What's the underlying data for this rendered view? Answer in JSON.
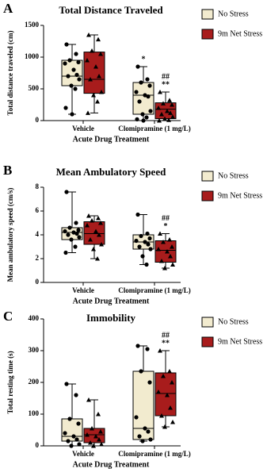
{
  "chart_data": [
    {
      "panel": "A",
      "type": "box",
      "title": "Total Distance Traveled",
      "y_label": "Total distance traveled (cm)",
      "x_label": "Acute Drug Treatment",
      "categories": [
        "Vehicle",
        "Clomipramine (1 mg/L)"
      ],
      "ylim": [
        0,
        1500
      ],
      "yticks": [
        0,
        500,
        1000,
        1500
      ],
      "series": [
        {
          "name": "No Stress",
          "color": "#f2ebcf",
          "marker": "circle",
          "boxes": [
            {
              "min": 100,
              "q1": 550,
              "median": 700,
              "q3": 950,
              "max": 1200,
              "points": [
                1200,
                1050,
                950,
                920,
                900,
                800,
                720,
                700,
                650,
                550,
                500,
                200,
                100
              ]
            },
            {
              "min": 0,
              "q1": 100,
              "median": 400,
              "q3": 600,
              "max": 850,
              "points": [
                850,
                650,
                600,
                550,
                450,
                400,
                380,
                300,
                150,
                100,
                50,
                20,
                0
              ],
              "marks": [
                "*"
              ]
            }
          ]
        },
        {
          "name": "9m Net Stress",
          "color": "#a81c1c",
          "marker": "triangle",
          "boxes": [
            {
              "min": 120,
              "q1": 430,
              "median": 650,
              "q3": 1080,
              "max": 1350,
              "points": [
                1350,
                1280,
                1100,
                1050,
                950,
                850,
                700,
                650,
                450,
                400,
                300,
                120
              ]
            },
            {
              "min": 0,
              "q1": 30,
              "median": 180,
              "q3": 280,
              "max": 450,
              "points": [
                450,
                320,
                270,
                250,
                200,
                150,
                120,
                100,
                60,
                30,
                10,
                0
              ],
              "marks": [
                "##",
                "**"
              ]
            }
          ]
        }
      ]
    },
    {
      "panel": "B",
      "type": "box",
      "title": "Mean Ambulatory Speed",
      "y_label": "Mean ambulatory speed (cm/s)",
      "x_label": "Acute Drug Treatment",
      "categories": [
        "Vehicle",
        "Clomipramine (1 mg/L)"
      ],
      "ylim": [
        0,
        8
      ],
      "yticks": [
        0,
        2,
        4,
        6,
        8
      ],
      "series": [
        {
          "name": "No Stress",
          "color": "#f2ebcf",
          "marker": "circle",
          "boxes": [
            {
              "min": 2.5,
              "q1": 3.6,
              "median": 4.2,
              "q3": 4.6,
              "max": 7.6,
              "points": [
                7.6,
                5.0,
                4.6,
                4.4,
                4.3,
                4.2,
                4.1,
                4.0,
                3.8,
                3.6,
                3.0,
                2.5
              ]
            },
            {
              "min": 1.5,
              "q1": 2.8,
              "median": 3.4,
              "q3": 4.0,
              "max": 5.7,
              "points": [
                5.7,
                4.1,
                3.9,
                3.7,
                3.5,
                3.4,
                3.2,
                3.0,
                2.8,
                2.2,
                1.5
              ]
            }
          ]
        },
        {
          "name": "9m Net Stress",
          "color": "#a81c1c",
          "marker": "triangle",
          "boxes": [
            {
              "min": 2.0,
              "q1": 3.2,
              "median": 4.1,
              "q3": 5.1,
              "max": 5.6,
              "points": [
                5.6,
                5.4,
                5.2,
                5.0,
                4.8,
                4.3,
                4.0,
                3.6,
                3.2,
                2.8,
                2.0
              ]
            },
            {
              "min": 1.2,
              "q1": 1.7,
              "median": 2.7,
              "q3": 3.5,
              "max": 4.1,
              "points": [
                4.1,
                3.6,
                3.4,
                3.0,
                2.8,
                2.6,
                2.2,
                1.8,
                1.5,
                1.2
              ],
              "marks": [
                "##",
                "*"
              ]
            }
          ]
        }
      ]
    },
    {
      "panel": "C",
      "type": "box",
      "title": "Immobility",
      "y_label": "Total resting time (s)",
      "x_label": "Acute Drug Treatment",
      "categories": [
        "Vehicle",
        "Clomipramine (1 mg/L)"
      ],
      "ylim": [
        0,
        400
      ],
      "yticks": [
        0,
        100,
        200,
        300,
        400
      ],
      "series": [
        {
          "name": "No Stress",
          "color": "#f2ebcf",
          "marker": "circle",
          "boxes": [
            {
              "min": 0,
              "q1": 15,
              "median": 30,
              "q3": 85,
              "max": 195,
              "points": [
                195,
                160,
                85,
                70,
                40,
                30,
                20,
                15,
                5,
                0
              ]
            },
            {
              "min": 15,
              "q1": 20,
              "median": 55,
              "q3": 235,
              "max": 315,
              "points": [
                315,
                305,
                235,
                200,
                90,
                55,
                45,
                30,
                20,
                15
              ]
            }
          ]
        },
        {
          "name": "9m Net Stress",
          "color": "#a81c1c",
          "marker": "triangle",
          "boxes": [
            {
              "min": 0,
              "q1": 10,
              "median": 35,
              "q3": 55,
              "max": 145,
              "points": [
                145,
                100,
                55,
                45,
                35,
                30,
                20,
                10,
                5,
                0
              ]
            },
            {
              "min": 60,
              "q1": 95,
              "median": 165,
              "q3": 230,
              "max": 300,
              "points": [
                300,
                235,
                220,
                200,
                170,
                160,
                120,
                95,
                75,
                60
              ],
              "marks": [
                "##",
                "**"
              ]
            }
          ]
        }
      ]
    }
  ]
}
